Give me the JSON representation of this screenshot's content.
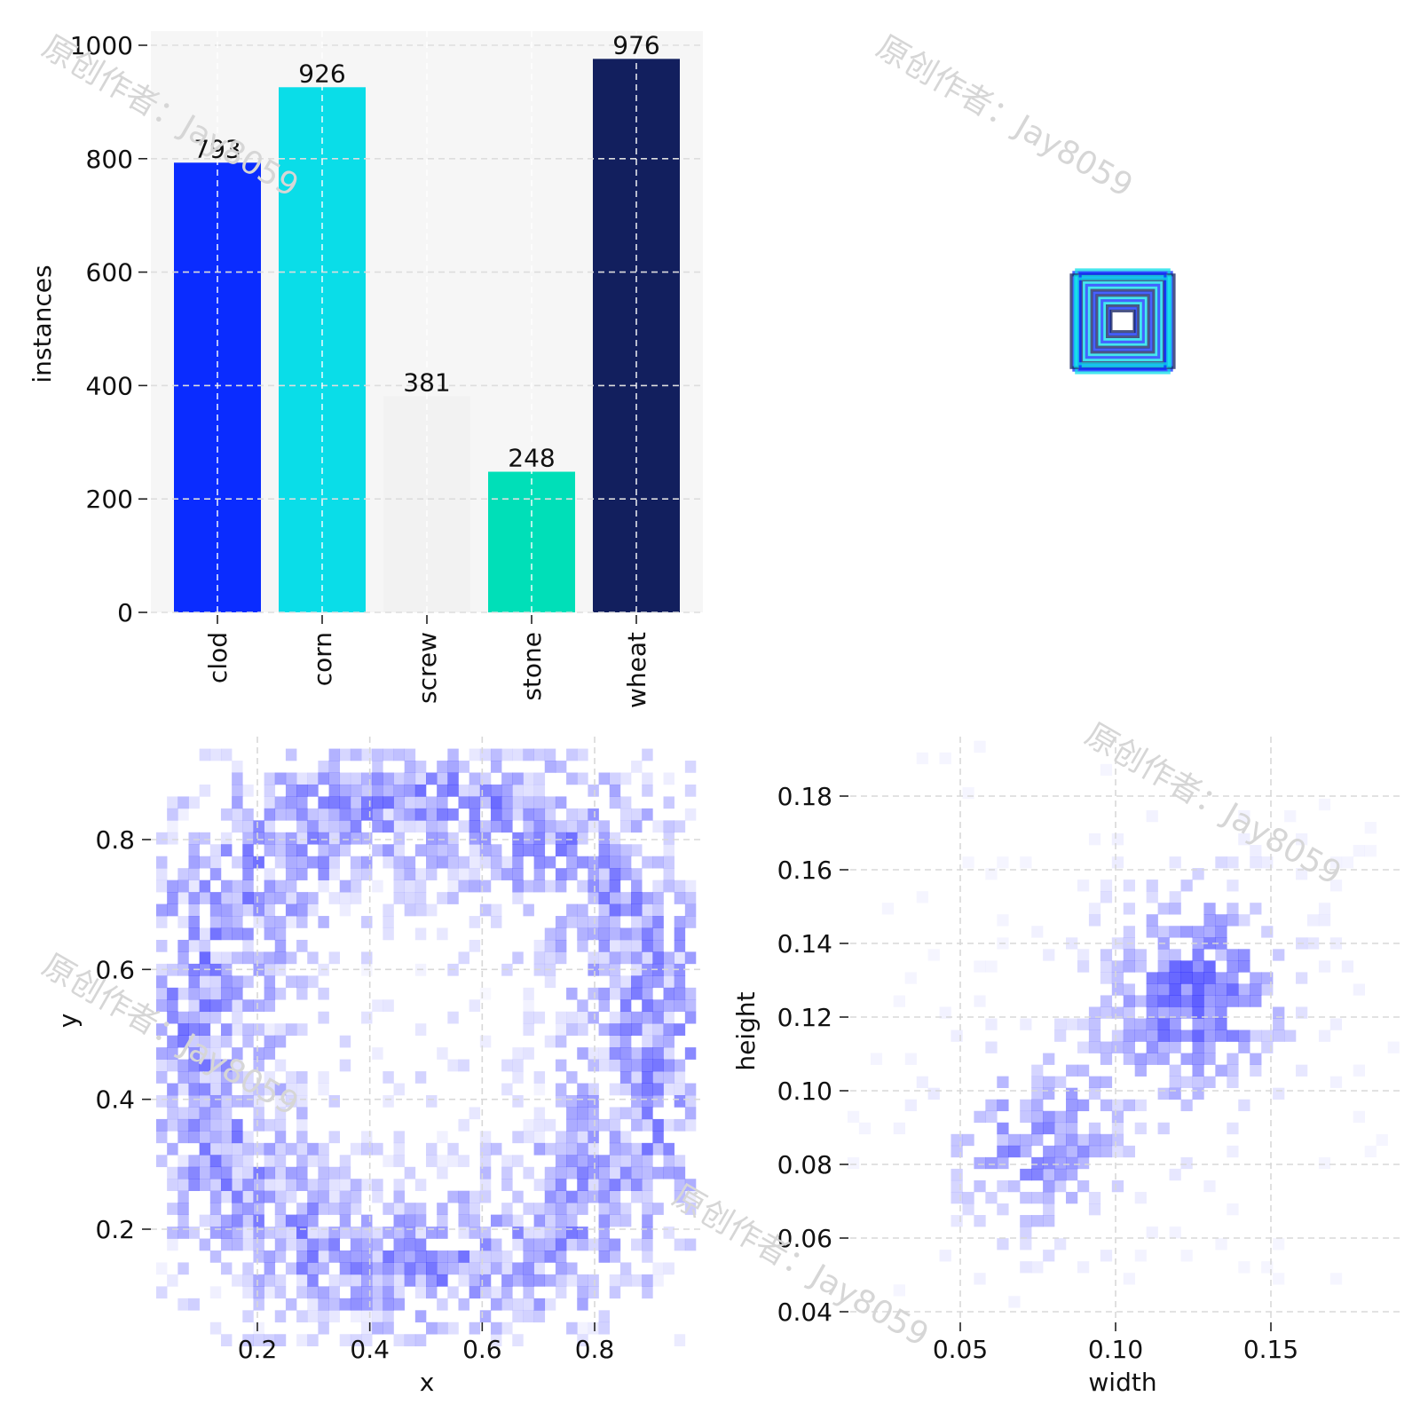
{
  "colors": {
    "bars": [
      "#0a2cff",
      "#0adde8",
      "#f2f2f2",
      "#00dfb8",
      "#121f5e"
    ],
    "hist": "#0000ff",
    "panel_bg": "#f6f6f6",
    "grid": "#dddddd"
  },
  "watermark": "原创作者：Jay8059",
  "chart_data": [
    {
      "id": "instances_per_class",
      "type": "bar",
      "categories": [
        "clod",
        "corn",
        "screw",
        "stone",
        "wheat"
      ],
      "values": [
        793,
        926,
        381,
        248,
        976
      ],
      "value_labels": [
        "793",
        "926",
        "381",
        "248",
        "976"
      ],
      "ylabel": "instances",
      "xlabel": "",
      "ylim": [
        0,
        1000
      ],
      "yticks": [
        0,
        200,
        400,
        600,
        800,
        1000
      ],
      "ytick_labels": [
        "0",
        "200",
        "400",
        "600",
        "800",
        "1000"
      ],
      "grid": true
    },
    {
      "id": "box_outlines",
      "type": "scatter",
      "description_free": true,
      "boxes_wh": [
        [
          0.19,
          0.19
        ],
        [
          0.18,
          0.2
        ],
        [
          0.2,
          0.18
        ],
        [
          0.17,
          0.17
        ],
        [
          0.16,
          0.16
        ],
        [
          0.15,
          0.15
        ],
        [
          0.14,
          0.14
        ],
        [
          0.13,
          0.13
        ],
        [
          0.12,
          0.12
        ],
        [
          0.11,
          0.11
        ],
        [
          0.1,
          0.1
        ],
        [
          0.09,
          0.09
        ],
        [
          0.08,
          0.08
        ],
        [
          0.07,
          0.07
        ],
        [
          0.06,
          0.06
        ],
        [
          0.05,
          0.05
        ],
        [
          0.045,
          0.04
        ],
        [
          0.185,
          0.175
        ],
        [
          0.165,
          0.185
        ],
        [
          0.175,
          0.165
        ]
      ],
      "grid": false
    },
    {
      "id": "xy_hist",
      "type": "heatmap",
      "xlabel": "x",
      "ylabel": "y",
      "xlim": [
        0.02,
        0.98
      ],
      "ylim": [
        0.02,
        0.94
      ],
      "xticks": [
        0.2,
        0.4,
        0.6,
        0.8
      ],
      "xtick_labels": [
        "0.2",
        "0.4",
        "0.6",
        "0.8"
      ],
      "yticks": [
        0.2,
        0.4,
        0.6,
        0.8
      ],
      "ytick_labels": [
        "0.2",
        "0.4",
        "0.6",
        "0.8"
      ],
      "bins": 50,
      "grid": true
    },
    {
      "id": "wh_hist",
      "type": "heatmap",
      "xlabel": "width",
      "ylabel": "height",
      "xlim": [
        0.01,
        0.195
      ],
      "ylim": [
        0.038,
        0.195
      ],
      "xticks": [
        0.05,
        0.1,
        0.15
      ],
      "xtick_labels": [
        "0.05",
        "0.10",
        "0.15"
      ],
      "yticks": [
        0.04,
        0.06,
        0.08,
        0.1,
        0.12,
        0.14,
        0.16,
        0.18
      ],
      "ytick_labels": [
        "0.04",
        "0.06",
        "0.08",
        "0.10",
        "0.12",
        "0.14",
        "0.16",
        "0.18"
      ],
      "bins": 50,
      "grid": true
    }
  ]
}
